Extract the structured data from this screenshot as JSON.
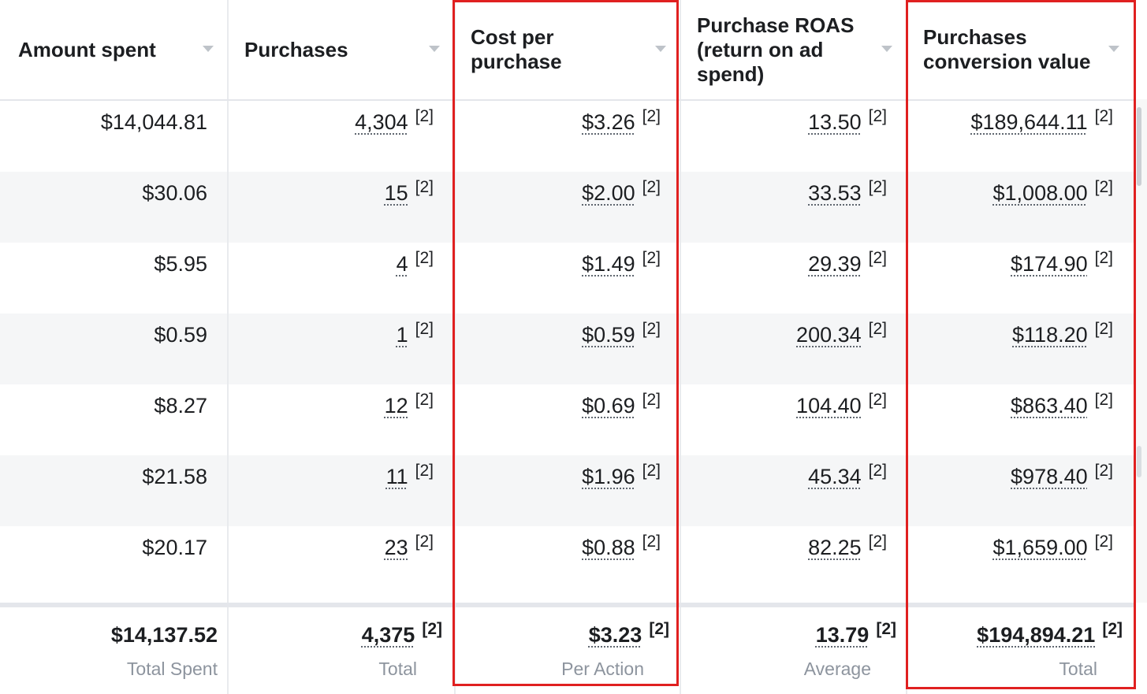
{
  "columns": [
    {
      "title": "Amount spent"
    },
    {
      "title": "Purchases"
    },
    {
      "title": "Cost per\npurchase"
    },
    {
      "title": "Purchase ROAS\n(return on ad\nspend)"
    },
    {
      "title": "Purchases\nconversion value"
    }
  ],
  "note_marker": "[2]",
  "rows": [
    {
      "amount": "$14,044.81",
      "purchases": "4,304",
      "cost": "$3.26",
      "roas": "13.50",
      "value": "$189,644.11"
    },
    {
      "amount": "$30.06",
      "purchases": "15",
      "cost": "$2.00",
      "roas": "33.53",
      "value": "$1,008.00"
    },
    {
      "amount": "$5.95",
      "purchases": "4",
      "cost": "$1.49",
      "roas": "29.39",
      "value": "$174.90"
    },
    {
      "amount": "$0.59",
      "purchases": "1",
      "cost": "$0.59",
      "roas": "200.34",
      "value": "$118.20"
    },
    {
      "amount": "$8.27",
      "purchases": "12",
      "cost": "$0.69",
      "roas": "104.40",
      "value": "$863.40"
    },
    {
      "amount": "$21.58",
      "purchases": "11",
      "cost": "$1.96",
      "roas": "45.34",
      "value": "$978.40"
    },
    {
      "amount": "$20.17",
      "purchases": "23",
      "cost": "$0.88",
      "roas": "82.25",
      "value": "$1,659.00"
    }
  ],
  "totals": {
    "amount": {
      "value": "$14,137.52",
      "label": "Total Spent"
    },
    "purchases": {
      "value": "4,375",
      "label": "Total"
    },
    "cost": {
      "value": "$3.23",
      "label": "Per Action"
    },
    "roas": {
      "value": "13.79",
      "label": "Average"
    },
    "value": {
      "value": "$194,894.21",
      "label": "Total"
    }
  },
  "highlight_color": "#e02020"
}
